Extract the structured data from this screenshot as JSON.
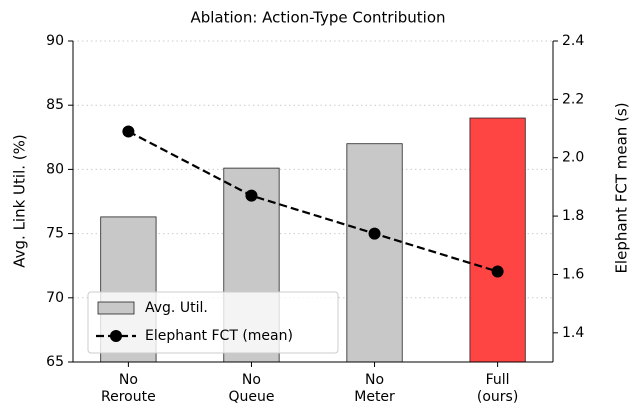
{
  "chart_data": {
    "type": "bar_line",
    "title": "Ablation: Action-Type Contribution",
    "ylabel": "Avg. Link Util. (%)",
    "y2label": "Elephant FCT mean (s)",
    "categories": [
      "No\nReroute",
      "No\nQueue",
      "No\nMeter",
      "Full\n(ours)"
    ],
    "series": [
      {
        "name": "Avg. Util.",
        "type": "bar",
        "colors": [
          "#c8c8c8",
          "#c8c8c8",
          "#c8c8c8",
          "#ff4444"
        ],
        "edgecolor": "#222222",
        "values": [
          76.3,
          80.1,
          82.0,
          84.0
        ]
      },
      {
        "name": "Elephant FCT (mean)",
        "type": "line",
        "axis": "y2",
        "color": "#000000",
        "linestyle": "dashed",
        "marker": "o",
        "values": [
          2.09,
          1.87,
          1.74,
          1.61
        ]
      }
    ],
    "ylim": [
      65,
      90
    ],
    "yticks": [
      65,
      70,
      75,
      80,
      85,
      90
    ],
    "y2lim": [
      1.3,
      2.4
    ],
    "y2ticks": [
      {
        "value": 1.4,
        "label": "1.4"
      },
      {
        "value": 1.6,
        "label": "1.6"
      },
      {
        "value": 1.8,
        "label": "1.8"
      },
      {
        "value": 2,
        "label": "2.0"
      },
      {
        "value": 2.2,
        "label": "2.2"
      },
      {
        "value": 2.4,
        "label": "2.4"
      }
    ],
    "grid": true,
    "legend": "lower left"
  }
}
